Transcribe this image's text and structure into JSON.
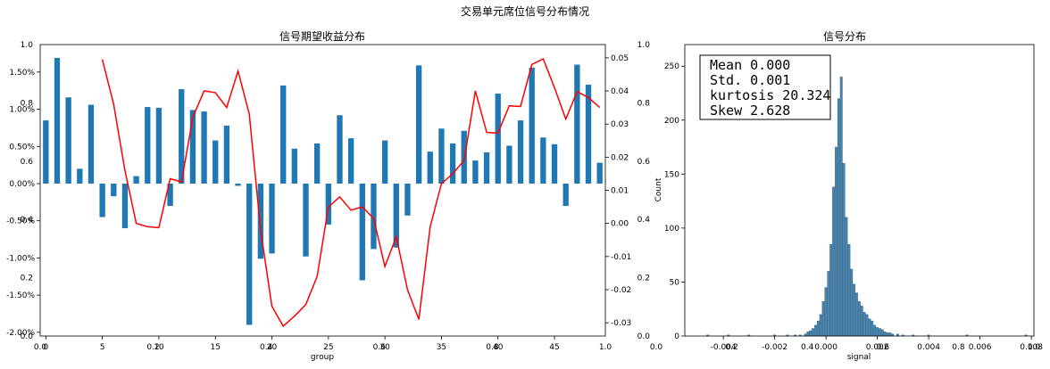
{
  "figure": {
    "suptitle": "交易单元席位信号分布情况"
  },
  "colors": {
    "bar": "#1f77b4",
    "line": "#ff0000",
    "hist": "#2c6e9b",
    "axis": "#000000"
  },
  "chart_data": [
    {
      "type": "bar",
      "title": "信号期望收益分布",
      "xlabel": "group",
      "ylabel": "",
      "x_ticks": [
        0,
        5,
        10,
        15,
        20,
        25,
        30,
        35,
        40,
        45
      ],
      "x_tick_labels": [
        "0",
        "5",
        "10",
        "15",
        "20",
        "25",
        "30",
        "35",
        "40",
        "45"
      ],
      "overlay_frac_ticks": [
        "0.0",
        "0.2",
        "0.4",
        "0.6",
        "0.8",
        "1.0"
      ],
      "overlay_frac_y_ticks": [
        "0.0",
        "0.2",
        "0.4",
        "0.6",
        "0.8",
        "1.0"
      ],
      "y_left_ticks": [
        -0.02,
        -0.015,
        -0.01,
        -0.005,
        0,
        0.005,
        0.01,
        0.015
      ],
      "y_left_tick_labels": [
        "-2.00%",
        "-1.50%",
        "-1.00%",
        "-0.50%",
        "0.00%",
        "0.50%",
        "1.00%",
        "1.50%"
      ],
      "y_left_lim": [
        -0.0205,
        0.0187
      ],
      "y_right_ticks": [
        -0.03,
        -0.02,
        -0.01,
        0,
        0.01,
        0.02,
        0.03,
        0.04,
        0.05
      ],
      "y_right_tick_labels": [
        "-0.03",
        "-0.02",
        "-0.01",
        "0.00",
        "0.01",
        "0.02",
        "0.03",
        "0.04",
        "0.05"
      ],
      "y_right_lim": [
        -0.034,
        0.054
      ],
      "series": [
        {
          "type": "bar",
          "x": [
            0,
            1,
            2,
            3,
            4,
            5,
            6,
            7,
            8,
            9,
            10,
            11,
            12,
            13,
            14,
            15,
            16,
            17,
            18,
            19,
            20,
            21,
            22,
            23,
            24,
            25,
            26,
            27,
            28,
            29,
            30,
            31,
            32,
            33,
            34,
            35,
            36,
            37,
            38,
            39,
            40,
            41,
            42,
            43,
            44,
            45,
            46,
            47,
            48,
            49
          ],
          "values": [
            0.0085,
            0.0169,
            0.0116,
            0.002,
            0.0106,
            -0.0045,
            -0.0017,
            -0.006,
            0.001,
            0.0103,
            0.0102,
            -0.003,
            0.0127,
            0.0099,
            0.0097,
            0.0058,
            0.0078,
            -0.0003,
            -0.019,
            -0.0101,
            -0.0094,
            0.0132,
            0.0047,
            -0.0098,
            0.0054,
            -0.0055,
            0.0092,
            0.0061,
            -0.013,
            -0.0088,
            0.0058,
            -0.0086,
            -0.0043,
            0.0159,
            0.0043,
            0.0074,
            0.0054,
            0.0071,
            0.0031,
            0.0042,
            0.0121,
            0.0051,
            0.0085,
            0.0156,
            0.0062,
            0.0053,
            -0.003,
            0.016,
            0.0133,
            0.0028
          ]
        },
        {
          "type": "line",
          "x": [
            5,
            6,
            7,
            8,
            9,
            10,
            11,
            12,
            13,
            14,
            15,
            16,
            17,
            18,
            19,
            20,
            21,
            22,
            23,
            24,
            25,
            26,
            27,
            28,
            29,
            30,
            31,
            32,
            33,
            34,
            35,
            36,
            37,
            38,
            39,
            40,
            41,
            42,
            43,
            44,
            45,
            46,
            47,
            48,
            49
          ],
          "values": [
            0.0495,
            0.036,
            0.016,
            0.0,
            -0.001,
            -0.0013,
            0.0135,
            0.0125,
            0.032,
            0.04,
            0.0395,
            0.035,
            0.046,
            0.033,
            -0.002,
            -0.025,
            -0.031,
            -0.028,
            -0.0245,
            -0.016,
            0.005,
            0.008,
            0.004,
            0.005,
            0.0015,
            -0.013,
            -0.004,
            -0.02,
            -0.029,
            -0.001,
            0.012,
            0.015,
            0.019,
            0.04,
            0.0275,
            0.0273,
            0.0355,
            0.0353,
            0.048,
            0.0497,
            0.041,
            0.0315,
            0.0398,
            0.038,
            0.035
          ]
        }
      ]
    },
    {
      "type": "histogram",
      "title": "信号分布",
      "xlabel": "signal",
      "ylabel": "Count",
      "x_ticks": [
        -0.004,
        -0.002,
        0,
        0.002,
        0.004,
        0.006,
        0.008
      ],
      "x_tick_labels": [
        "-0.004",
        "-0.002",
        "0.000",
        "0.002",
        "0.004",
        "0.006",
        "0.008"
      ],
      "xlim": [
        -0.0055,
        0.0081
      ],
      "y_ticks": [
        0,
        50,
        100,
        150,
        200,
        250
      ],
      "y_tick_labels": [
        "0",
        "50",
        "100",
        "150",
        "200",
        "250"
      ],
      "ylim": [
        0,
        270
      ],
      "bins": [
        [
          -0.0008,
          2
        ],
        [
          -0.0007,
          4
        ],
        [
          -0.0006,
          5
        ],
        [
          -0.0005,
          7
        ],
        [
          -0.0004,
          10
        ],
        [
          -0.0003,
          14
        ],
        [
          -0.0002,
          20
        ],
        [
          -0.0001,
          32
        ],
        [
          0.0,
          45
        ],
        [
          0.0001,
          60
        ],
        [
          0.0002,
          85
        ],
        [
          0.0003,
          138
        ],
        [
          0.0004,
          175
        ],
        [
          0.0005,
          220
        ],
        [
          0.0006,
          240
        ],
        [
          0.0007,
          160
        ],
        [
          0.0008,
          110
        ],
        [
          0.0009,
          85
        ],
        [
          0.001,
          62
        ],
        [
          0.0011,
          48
        ],
        [
          0.0012,
          40
        ],
        [
          0.0013,
          32
        ],
        [
          0.0014,
          28
        ],
        [
          0.0015,
          22
        ],
        [
          0.0016,
          20
        ],
        [
          0.0017,
          16
        ],
        [
          0.0018,
          14
        ],
        [
          0.0019,
          10
        ],
        [
          0.002,
          8
        ],
        [
          0.0021,
          7
        ],
        [
          0.0022,
          6
        ],
        [
          0.0023,
          4
        ],
        [
          0.0024,
          3
        ],
        [
          0.0025,
          3
        ],
        [
          0.0026,
          2
        ],
        [
          0.0028,
          2
        ],
        [
          0.003,
          1
        ],
        [
          0.0034,
          1
        ],
        [
          0.004,
          1
        ],
        [
          0.0055,
          1
        ],
        [
          0.0078,
          1
        ],
        [
          -0.001,
          1
        ],
        [
          -0.0012,
          1
        ],
        [
          -0.0015,
          1
        ],
        [
          -0.002,
          1
        ],
        [
          -0.003,
          1
        ],
        [
          -0.0038,
          1
        ],
        [
          -0.0046,
          1
        ]
      ],
      "stats_box": {
        "mean": "Mean 0.000",
        "std": "Std. 0.001",
        "kurtosis": "kurtosis 20.324",
        "skew": "Skew 2.628"
      },
      "legend_position": "top-left"
    }
  ]
}
